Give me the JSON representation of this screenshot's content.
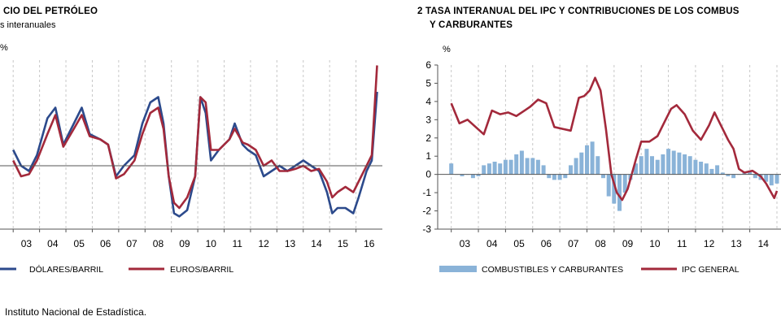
{
  "left_panel": {
    "title": "CIO DEL PETRÓLEO",
    "subtitle": "s interanuales",
    "unit": "%",
    "years": [
      "03",
      "04",
      "05",
      "06",
      "07",
      "08",
      "09",
      "10",
      "11",
      "12",
      "13",
      "14",
      "15",
      "16"
    ],
    "legend": [
      "DÓLARES/BARRIL",
      "EUROS/BARRIL"
    ]
  },
  "right_panel": {
    "title_line1": "2  TASA INTERANUAL DEL IPC Y CONTRIBUCIONES DE LOS COMBUS",
    "title_line2": "Y CARBURANTES",
    "unit": "%",
    "y_ticks": [
      "6",
      "5",
      "4",
      "3",
      "2",
      "1",
      "0",
      "-1",
      "-2",
      "-3"
    ],
    "years": [
      "03",
      "04",
      "05",
      "06",
      "07",
      "08",
      "09",
      "10",
      "11",
      "12",
      "13",
      "14"
    ],
    "legend": [
      "COMBUSTIBLES Y CARBURANTES",
      "IPC GENERAL"
    ]
  },
  "source": "Instituto Nacional de Estadística.",
  "colors": {
    "dollars": "#2c4a8c",
    "euros": "#a3293b",
    "bars": "#8ab3d8",
    "axis": "#555555",
    "grid": "#c8c8c8"
  },
  "chart_data": [
    {
      "type": "line",
      "title": "CIO DEL PETRÓLEO",
      "ylabel": "%",
      "x": [
        "03",
        "04",
        "05",
        "06",
        "07",
        "08",
        "09",
        "10",
        "11",
        "12",
        "13",
        "14",
        "15",
        "16"
      ],
      "ylim": [
        -60,
        100
      ],
      "series": [
        {
          "name": "DÓLARES/BARRIL",
          "values": [
            15,
            35,
            45,
            22,
            10,
            50,
            -45,
            65,
            22,
            8,
            2,
            -3,
            -45,
            10
          ],
          "points": [
            [
              2003.0,
              15
            ],
            [
              2003.3,
              0
            ],
            [
              2003.6,
              -5
            ],
            [
              2003.9,
              10
            ],
            [
              2004.3,
              45
            ],
            [
              2004.6,
              55
            ],
            [
              2004.9,
              20
            ],
            [
              2005.3,
              40
            ],
            [
              2005.6,
              55
            ],
            [
              2005.9,
              30
            ],
            [
              2006.3,
              25
            ],
            [
              2006.6,
              20
            ],
            [
              2006.9,
              -10
            ],
            [
              2007.2,
              0
            ],
            [
              2007.6,
              10
            ],
            [
              2007.9,
              40
            ],
            [
              2008.2,
              60
            ],
            [
              2008.5,
              65
            ],
            [
              2008.7,
              40
            ],
            [
              2008.9,
              -10
            ],
            [
              2009.1,
              -45
            ],
            [
              2009.3,
              -48
            ],
            [
              2009.6,
              -42
            ],
            [
              2009.9,
              -10
            ],
            [
              2010.1,
              65
            ],
            [
              2010.3,
              50
            ],
            [
              2010.5,
              5
            ],
            [
              2010.8,
              15
            ],
            [
              2011.2,
              25
            ],
            [
              2011.4,
              40
            ],
            [
              2011.7,
              20
            ],
            [
              2011.9,
              15
            ],
            [
              2012.2,
              10
            ],
            [
              2012.5,
              -10
            ],
            [
              2012.8,
              -5
            ],
            [
              2013.1,
              0
            ],
            [
              2013.4,
              -5
            ],
            [
              2013.7,
              0
            ],
            [
              2014.0,
              5
            ],
            [
              2014.3,
              0
            ],
            [
              2014.6,
              -5
            ],
            [
              2014.9,
              -25
            ],
            [
              2015.1,
              -45
            ],
            [
              2015.3,
              -40
            ],
            [
              2015.6,
              -40
            ],
            [
              2015.9,
              -45
            ],
            [
              2016.1,
              -30
            ],
            [
              2016.4,
              -5
            ],
            [
              2016.6,
              5
            ],
            [
              2016.8,
              70
            ]
          ]
        },
        {
          "name": "EUROS/BARRIL",
          "values": [
            5,
            30,
            45,
            20,
            5,
            45,
            -35,
            65,
            22,
            15,
            0,
            0,
            -30,
            10
          ],
          "points": [
            [
              2003.0,
              5
            ],
            [
              2003.3,
              -10
            ],
            [
              2003.6,
              -8
            ],
            [
              2003.9,
              5
            ],
            [
              2004.3,
              30
            ],
            [
              2004.6,
              48
            ],
            [
              2004.9,
              18
            ],
            [
              2005.3,
              35
            ],
            [
              2005.6,
              48
            ],
            [
              2005.9,
              28
            ],
            [
              2006.3,
              25
            ],
            [
              2006.6,
              20
            ],
            [
              2006.9,
              -12
            ],
            [
              2007.2,
              -8
            ],
            [
              2007.6,
              5
            ],
            [
              2007.9,
              30
            ],
            [
              2008.2,
              50
            ],
            [
              2008.5,
              55
            ],
            [
              2008.7,
              35
            ],
            [
              2008.9,
              -10
            ],
            [
              2009.1,
              -35
            ],
            [
              2009.3,
              -40
            ],
            [
              2009.6,
              -30
            ],
            [
              2009.9,
              -10
            ],
            [
              2010.1,
              65
            ],
            [
              2010.3,
              60
            ],
            [
              2010.5,
              15
            ],
            [
              2010.8,
              15
            ],
            [
              2011.2,
              25
            ],
            [
              2011.4,
              35
            ],
            [
              2011.7,
              22
            ],
            [
              2011.9,
              20
            ],
            [
              2012.2,
              15
            ],
            [
              2012.5,
              0
            ],
            [
              2012.8,
              5
            ],
            [
              2013.1,
              -5
            ],
            [
              2013.4,
              -5
            ],
            [
              2013.7,
              -3
            ],
            [
              2014.0,
              0
            ],
            [
              2014.3,
              -5
            ],
            [
              2014.6,
              -3
            ],
            [
              2014.9,
              -15
            ],
            [
              2015.1,
              -30
            ],
            [
              2015.3,
              -25
            ],
            [
              2015.6,
              -20
            ],
            [
              2015.9,
              -25
            ],
            [
              2016.1,
              -15
            ],
            [
              2016.4,
              0
            ],
            [
              2016.6,
              10
            ],
            [
              2016.8,
              95
            ]
          ]
        }
      ]
    },
    {
      "type": "bar",
      "title": "TASA INTERANUAL DEL IPC Y CONTRIBUCIONES DE LOS COMBUS Y CARBURANTES",
      "ylabel": "%",
      "x": [
        "03",
        "04",
        "05",
        "06",
        "07",
        "08",
        "09",
        "10",
        "11",
        "12",
        "13",
        "14"
      ],
      "ylim": [
        -3,
        6
      ],
      "series": [
        {
          "name": "IPC GENERAL",
          "type": "line",
          "points": [
            [
              2003.0,
              3.9
            ],
            [
              2003.3,
              2.8
            ],
            [
              2003.6,
              3.0
            ],
            [
              2003.9,
              2.6
            ],
            [
              2004.2,
              2.2
            ],
            [
              2004.5,
              3.5
            ],
            [
              2004.8,
              3.3
            ],
            [
              2005.1,
              3.4
            ],
            [
              2005.4,
              3.2
            ],
            [
              2005.7,
              3.5
            ],
            [
              2005.9,
              3.7
            ],
            [
              2006.2,
              4.1
            ],
            [
              2006.5,
              3.9
            ],
            [
              2006.8,
              2.6
            ],
            [
              2007.1,
              2.5
            ],
            [
              2007.4,
              2.4
            ],
            [
              2007.7,
              4.2
            ],
            [
              2007.9,
              4.3
            ],
            [
              2008.1,
              4.6
            ],
            [
              2008.3,
              5.3
            ],
            [
              2008.5,
              4.6
            ],
            [
              2008.7,
              2.5
            ],
            [
              2008.9,
              0.0
            ],
            [
              2009.1,
              -1.0
            ],
            [
              2009.3,
              -1.4
            ],
            [
              2009.5,
              -0.8
            ],
            [
              2009.8,
              0.8
            ],
            [
              2010.0,
              1.8
            ],
            [
              2010.3,
              1.8
            ],
            [
              2010.6,
              2.1
            ],
            [
              2010.9,
              3.0
            ],
            [
              2011.1,
              3.6
            ],
            [
              2011.3,
              3.8
            ],
            [
              2011.6,
              3.3
            ],
            [
              2011.9,
              2.4
            ],
            [
              2012.2,
              1.9
            ],
            [
              2012.5,
              2.7
            ],
            [
              2012.7,
              3.4
            ],
            [
              2012.9,
              2.8
            ],
            [
              2013.2,
              1.9
            ],
            [
              2013.4,
              1.4
            ],
            [
              2013.6,
              0.3
            ],
            [
              2013.8,
              0.1
            ],
            [
              2014.1,
              0.2
            ],
            [
              2014.4,
              -0.1
            ],
            [
              2014.6,
              -0.5
            ],
            [
              2014.9,
              -1.3
            ],
            [
              2015.0,
              -0.9
            ]
          ]
        },
        {
          "name": "COMBUSTIBLES Y CARBURANTES",
          "type": "bar",
          "points": [
            [
              2003.0,
              0.6
            ],
            [
              2003.2,
              0.0
            ],
            [
              2003.4,
              -0.1
            ],
            [
              2003.6,
              0.0
            ],
            [
              2003.8,
              -0.2
            ],
            [
              2004.0,
              -0.1
            ],
            [
              2004.2,
              0.5
            ],
            [
              2004.4,
              0.6
            ],
            [
              2004.6,
              0.7
            ],
            [
              2004.8,
              0.6
            ],
            [
              2005.0,
              0.8
            ],
            [
              2005.2,
              0.8
            ],
            [
              2005.4,
              1.1
            ],
            [
              2005.6,
              1.3
            ],
            [
              2005.8,
              0.9
            ],
            [
              2006.0,
              0.9
            ],
            [
              2006.2,
              0.8
            ],
            [
              2006.4,
              0.5
            ],
            [
              2006.6,
              -0.2
            ],
            [
              2006.8,
              -0.3
            ],
            [
              2007.0,
              -0.3
            ],
            [
              2007.2,
              -0.2
            ],
            [
              2007.4,
              0.5
            ],
            [
              2007.6,
              0.9
            ],
            [
              2007.8,
              1.2
            ],
            [
              2008.0,
              1.6
            ],
            [
              2008.2,
              1.8
            ],
            [
              2008.4,
              1.0
            ],
            [
              2008.6,
              -0.2
            ],
            [
              2008.8,
              -1.2
            ],
            [
              2009.0,
              -1.6
            ],
            [
              2009.2,
              -2.0
            ],
            [
              2009.4,
              -1.0
            ],
            [
              2009.6,
              -0.3
            ],
            [
              2009.8,
              0.6
            ],
            [
              2010.0,
              1.0
            ],
            [
              2010.2,
              1.4
            ],
            [
              2010.4,
              1.0
            ],
            [
              2010.6,
              0.8
            ],
            [
              2010.8,
              1.1
            ],
            [
              2011.0,
              1.4
            ],
            [
              2011.2,
              1.3
            ],
            [
              2011.4,
              1.2
            ],
            [
              2011.6,
              1.1
            ],
            [
              2011.8,
              1.0
            ],
            [
              2012.0,
              0.8
            ],
            [
              2012.2,
              0.7
            ],
            [
              2012.4,
              0.6
            ],
            [
              2012.6,
              0.3
            ],
            [
              2012.8,
              0.5
            ],
            [
              2013.0,
              0.1
            ],
            [
              2013.2,
              -0.1
            ],
            [
              2013.4,
              -0.2
            ],
            [
              2013.6,
              0.0
            ],
            [
              2013.8,
              0.1
            ],
            [
              2014.0,
              0.2
            ],
            [
              2014.2,
              -0.2
            ],
            [
              2014.4,
              -0.3
            ],
            [
              2014.6,
              -0.4
            ],
            [
              2014.8,
              -0.6
            ],
            [
              2015.0,
              -0.5
            ]
          ]
        }
      ]
    }
  ]
}
